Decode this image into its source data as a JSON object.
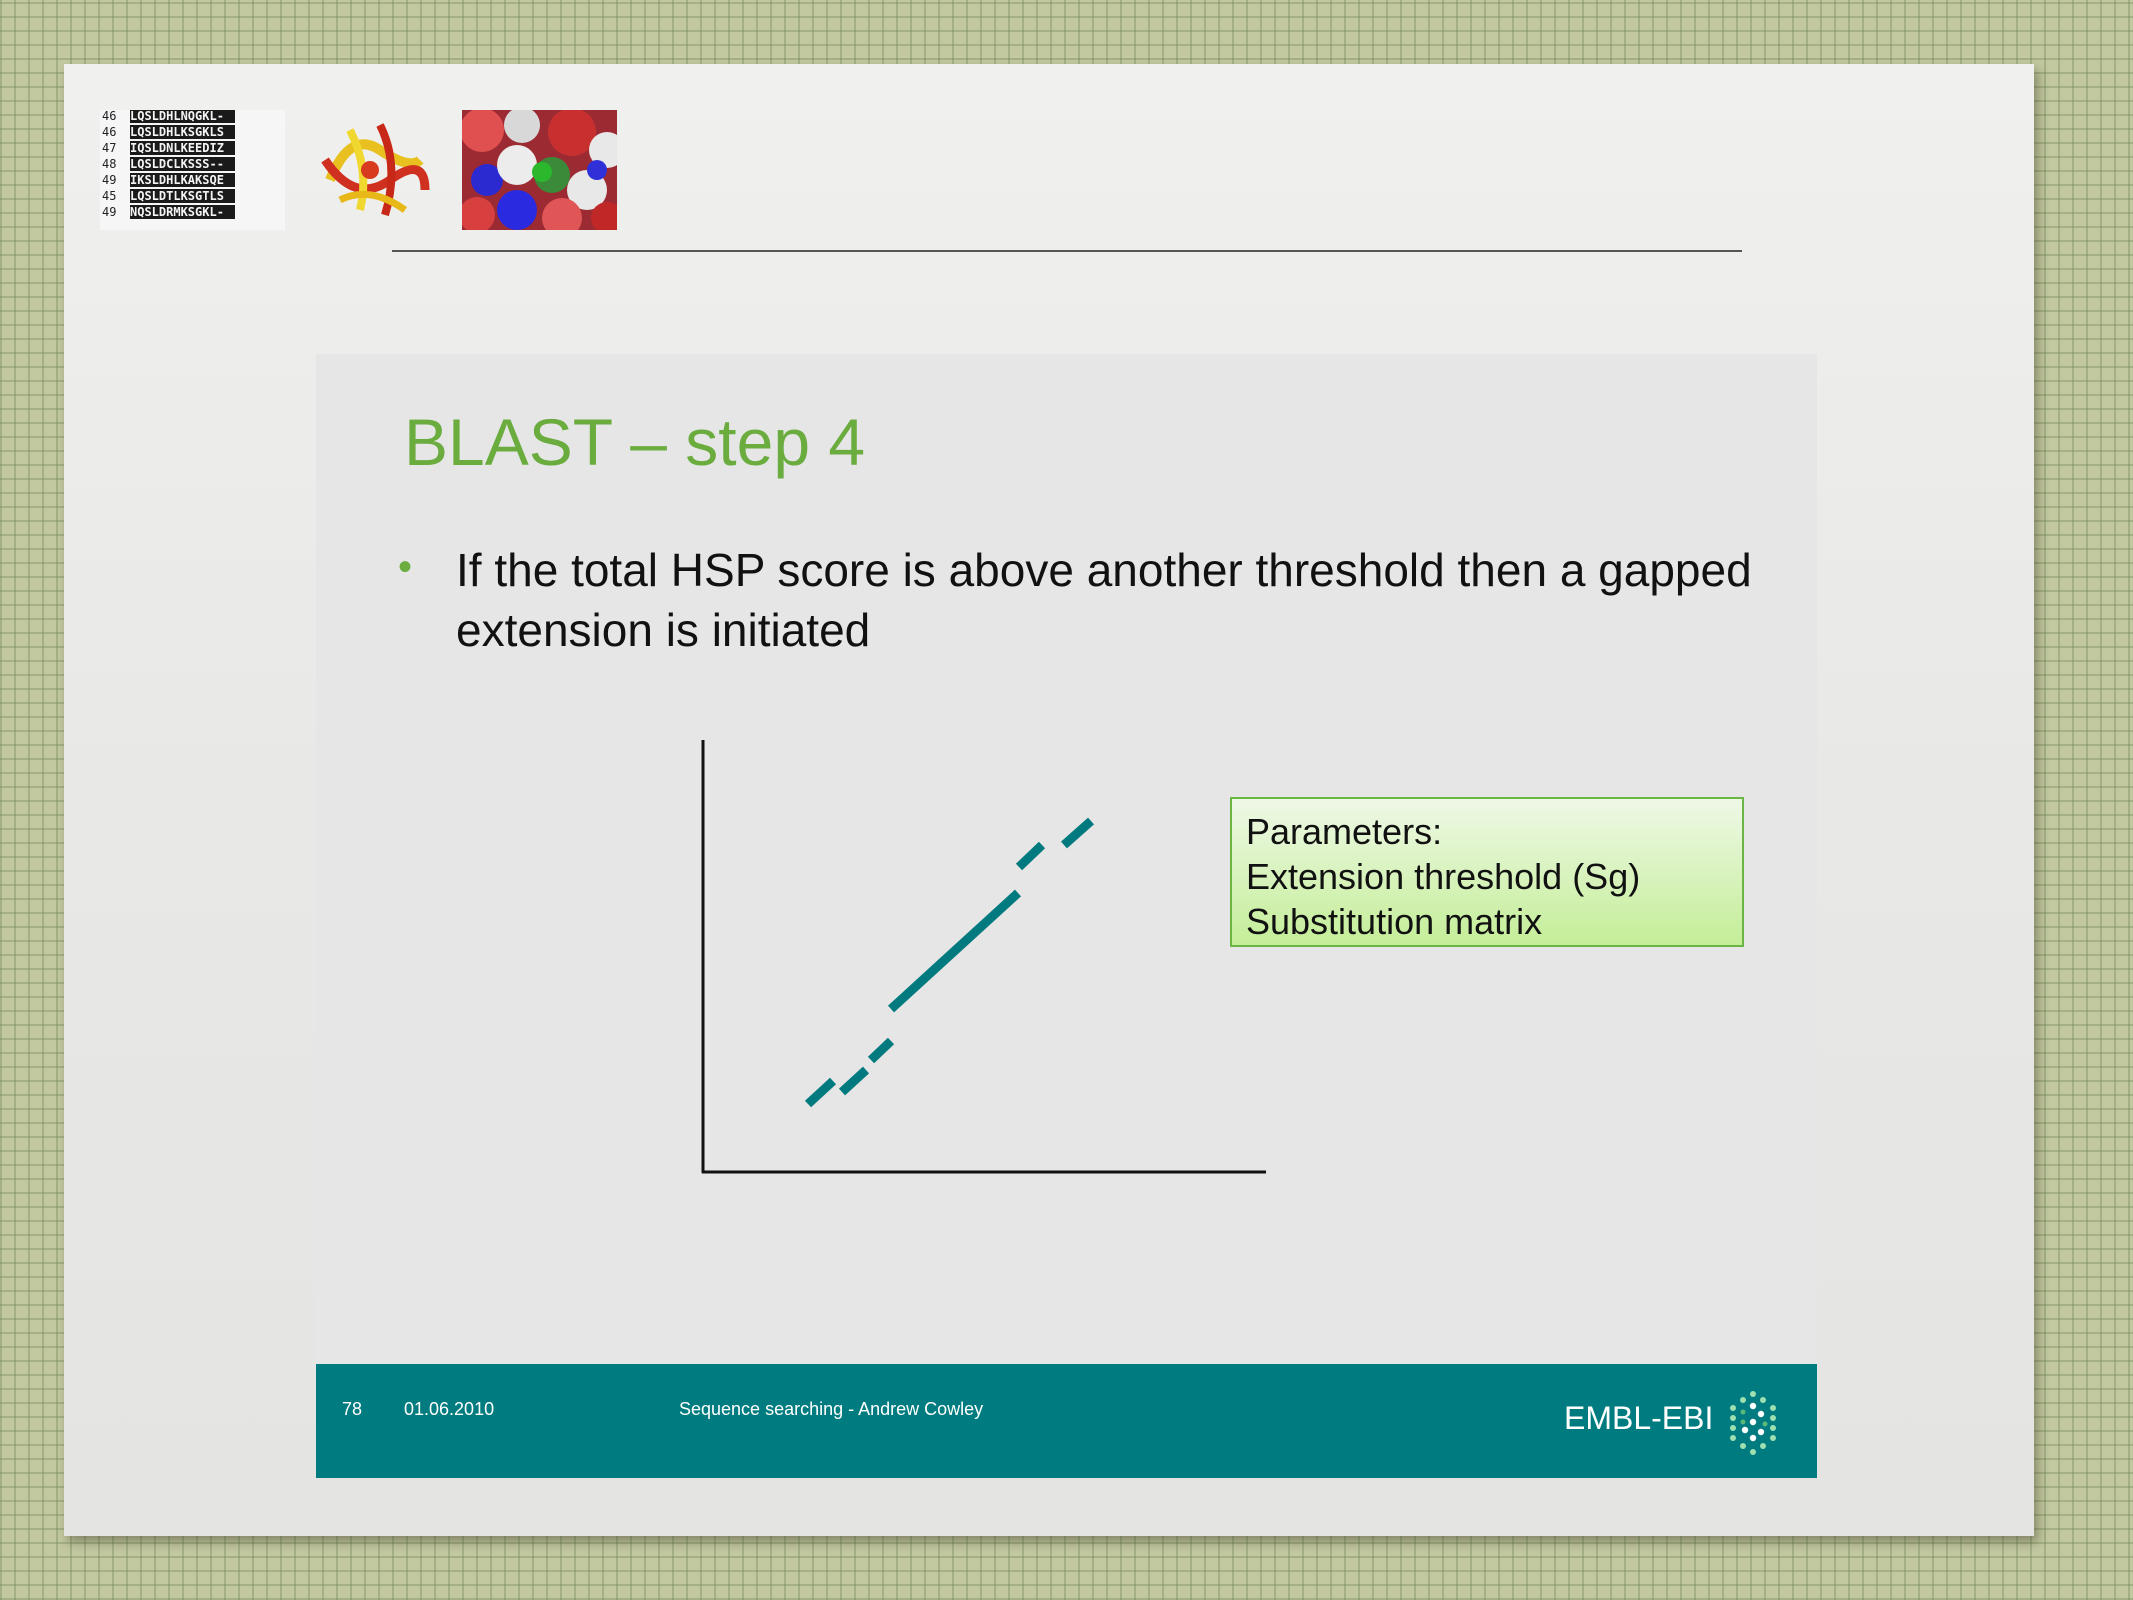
{
  "slide": {
    "title": "BLAST – step 4",
    "bullet": "If the total HSP score is above another threshold then a gapped extension is initiated",
    "parameters": {
      "heading": "Parameters:",
      "items": [
        "Extension threshold (Sg)",
        "Substitution matrix"
      ]
    }
  },
  "header_images": {
    "alignment_rows": [
      {
        "num": "46",
        "seq": "LQSLDHLNQGKL-"
      },
      {
        "num": "46",
        "seq": "LQSLDHLKSGKLS"
      },
      {
        "num": "47",
        "seq": "IQSLDNLKEEDIZ"
      },
      {
        "num": "48",
        "seq": "LQSLDCLKSSS--"
      },
      {
        "num": "49",
        "seq": "IKSLDHLKAKSQE"
      },
      {
        "num": "45",
        "seq": "LQSLDTLKSGTLS"
      },
      {
        "num": "49",
        "seq": "NQSLDRMKSGKL-"
      }
    ]
  },
  "footer": {
    "page_number": "78",
    "date": "01.06.2010",
    "credit": "Sequence searching - Andrew Cowley",
    "logo_text": "EMBL-EBI"
  },
  "colors": {
    "title_green": "#6aac3e",
    "teal": "#007c80",
    "line_teal": "#007a7e",
    "param_border": "#6bb544"
  }
}
